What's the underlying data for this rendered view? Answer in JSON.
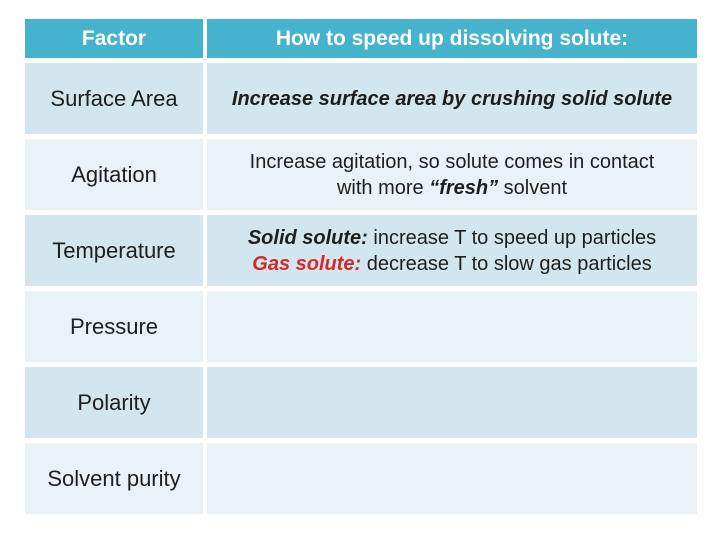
{
  "colors": {
    "page_bg": "#FFFFFF",
    "header_bg": "#45B3CE",
    "header_text": "#FFFFFF",
    "band_dark": "#D3E5EF",
    "band_light": "#E9F2F7",
    "text": "#1E1E1E",
    "accent_red": "#D02B2B"
  },
  "table": {
    "header": {
      "factor": "Factor",
      "how": "How to speed up dissolving solute:"
    },
    "rows": [
      {
        "factor": "Surface Area",
        "lines": [
          [
            {
              "text": "Increase surface area by crushing solid solute",
              "bold": true,
              "italic": true
            }
          ]
        ]
      },
      {
        "factor": "Agitation",
        "lines": [
          [
            {
              "text": "Increase agitation, so solute comes in contact"
            }
          ],
          [
            {
              "text": "with more "
            },
            {
              "text": "“fresh”",
              "bold": true,
              "italic": true
            },
            {
              "text": " solvent"
            }
          ]
        ]
      },
      {
        "factor": "Temperature",
        "lines": [
          [
            {
              "text": "Solid solute:",
              "bold": true,
              "italic": true
            },
            {
              "text": " increase T to speed up particles"
            }
          ],
          [
            {
              "text": "Gas solute:",
              "bold": true,
              "italic": true,
              "red": true
            },
            {
              "text": " decrease T to slow gas particles"
            }
          ]
        ]
      },
      {
        "factor": "Pressure",
        "lines": []
      },
      {
        "factor": "Polarity",
        "lines": []
      },
      {
        "factor": "Solvent purity",
        "lines": []
      }
    ]
  }
}
